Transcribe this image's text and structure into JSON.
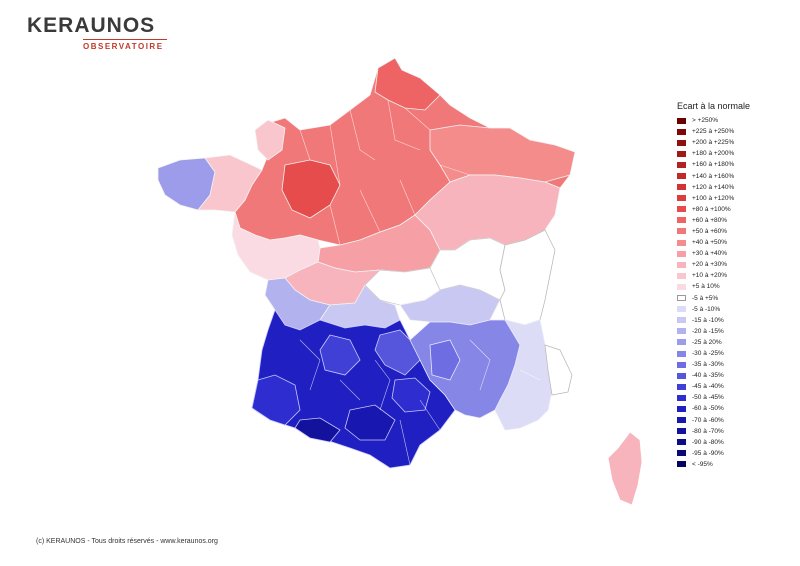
{
  "brand": {
    "name": "KERAUNOS",
    "subtitle": "OBSERVATOIRE"
  },
  "legend": {
    "title": "Ecart à la normale",
    "items": [
      {
        "label": "> +250%",
        "color": "#6b0000"
      },
      {
        "label": "+225 à +250%",
        "color": "#7e0808"
      },
      {
        "label": "+200 à +225%",
        "color": "#8e1010"
      },
      {
        "label": "+180 à +200%",
        "color": "#a01818"
      },
      {
        "label": "+160 à +180%",
        "color": "#b22222"
      },
      {
        "label": "+140 à +160%",
        "color": "#c22a2a"
      },
      {
        "label": "+120 à +140%",
        "color": "#d03333"
      },
      {
        "label": "+100 à +120%",
        "color": "#dc3e3e"
      },
      {
        "label": "+80 à +100%",
        "color": "#e64c4c"
      },
      {
        "label": "+60 à +80%",
        "color": "#ee6464"
      },
      {
        "label": "+50 à +60%",
        "color": "#f17878"
      },
      {
        "label": "+40 à +50%",
        "color": "#f48c8c"
      },
      {
        "label": "+30 à +40%",
        "color": "#f6a0a6"
      },
      {
        "label": "+20 à +30%",
        "color": "#f8b4bc"
      },
      {
        "label": "+10 à +20%",
        "color": "#f9c6cd"
      },
      {
        "label": "+5 à 10%",
        "color": "#fadbe3"
      },
      {
        "label": "-5 à +5%",
        "color": "#ffffff"
      },
      {
        "label": "-5 à -10%",
        "color": "#dcdcf6"
      },
      {
        "label": "-15 à -10%",
        "color": "#c8c8f2"
      },
      {
        "label": "-20 à -15%",
        "color": "#b2b2ee"
      },
      {
        "label": "-25 à 20%",
        "color": "#9c9cea"
      },
      {
        "label": "-30 à -25%",
        "color": "#8686e6"
      },
      {
        "label": "-35 à -30%",
        "color": "#6e6ee2"
      },
      {
        "label": "-40 à -35%",
        "color": "#5656dc"
      },
      {
        "label": "-45 à -40%",
        "color": "#4040d6"
      },
      {
        "label": "-50 à -45%",
        "color": "#2e2ed0"
      },
      {
        "label": "-60 à -50%",
        "color": "#2020c2"
      },
      {
        "label": "-70 à -60%",
        "color": "#1818b0"
      },
      {
        "label": "-80 à -70%",
        "color": "#12129c"
      },
      {
        "label": "-90 à -80%",
        "color": "#0c0c88"
      },
      {
        "label": "-95 à -90%",
        "color": "#080876"
      },
      {
        "label": "< -95%",
        "color": "#040462"
      }
    ]
  },
  "footer": "(c) KERAUNOS - Tous droits réservés - www.keraunos.org"
}
